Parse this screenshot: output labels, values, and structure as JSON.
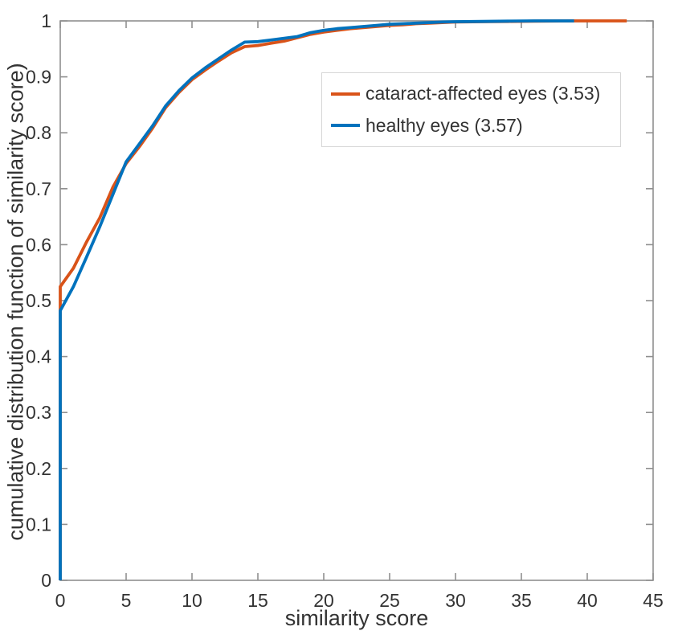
{
  "chart_data": {
    "type": "line",
    "title": "",
    "xlabel": "similarity score",
    "ylabel": "cumulative distribution function of similarity score)",
    "xlim": [
      0,
      45
    ],
    "ylim": [
      0,
      1
    ],
    "xticks": [
      0,
      5,
      10,
      15,
      20,
      25,
      30,
      35,
      40,
      45
    ],
    "yticks": [
      0,
      0.1,
      0.2,
      0.3,
      0.4,
      0.5,
      0.6,
      0.7,
      0.8,
      0.9,
      1
    ],
    "grid": false,
    "box": true,
    "tick_direction": "in",
    "legend_position": "upper-right-inside",
    "axis_color": "#8f8f8f",
    "tick_label_color": "#333333",
    "series": [
      {
        "name": "cataract-affected-eyes",
        "label": "cataract-affected eyes (3.53)",
        "legend_value": 3.53,
        "color": "#D95319",
        "points": [
          [
            0,
            0
          ],
          [
            0,
            0.525
          ],
          [
            1,
            0.558
          ],
          [
            2,
            0.605
          ],
          [
            3,
            0.648
          ],
          [
            4,
            0.703
          ],
          [
            5,
            0.745
          ],
          [
            6,
            0.775
          ],
          [
            7,
            0.808
          ],
          [
            8,
            0.845
          ],
          [
            9,
            0.872
          ],
          [
            10,
            0.895
          ],
          [
            11,
            0.912
          ],
          [
            12,
            0.928
          ],
          [
            13,
            0.943
          ],
          [
            14,
            0.954
          ],
          [
            15,
            0.956
          ],
          [
            16,
            0.96
          ],
          [
            17,
            0.964
          ],
          [
            18,
            0.97
          ],
          [
            19,
            0.976
          ],
          [
            20,
            0.98
          ],
          [
            21,
            0.983
          ],
          [
            22,
            0.986
          ],
          [
            23,
            0.988
          ],
          [
            24,
            0.99
          ],
          [
            25,
            0.992
          ],
          [
            26,
            0.993
          ],
          [
            27,
            0.995
          ],
          [
            28,
            0.996
          ],
          [
            29,
            0.997
          ],
          [
            30,
            0.998
          ],
          [
            32,
            0.9985
          ],
          [
            34,
            0.999
          ],
          [
            36,
            0.9995
          ],
          [
            39,
            1.0
          ],
          [
            43,
            1.0
          ]
        ]
      },
      {
        "name": "healthy-eyes",
        "label": "healthy eyes (3.57)",
        "legend_value": 3.57,
        "color": "#0072BD",
        "points": [
          [
            0,
            0
          ],
          [
            0,
            0.482
          ],
          [
            1,
            0.525
          ],
          [
            2,
            0.578
          ],
          [
            3,
            0.632
          ],
          [
            4,
            0.69
          ],
          [
            5,
            0.748
          ],
          [
            6,
            0.78
          ],
          [
            7,
            0.812
          ],
          [
            8,
            0.848
          ],
          [
            9,
            0.875
          ],
          [
            10,
            0.898
          ],
          [
            11,
            0.916
          ],
          [
            12,
            0.932
          ],
          [
            13,
            0.948
          ],
          [
            14,
            0.962
          ],
          [
            15,
            0.963
          ],
          [
            16,
            0.966
          ],
          [
            17,
            0.969
          ],
          [
            18,
            0.972
          ],
          [
            19,
            0.979
          ],
          [
            20,
            0.983
          ],
          [
            21,
            0.986
          ],
          [
            22,
            0.988
          ],
          [
            23,
            0.99
          ],
          [
            24,
            0.992
          ],
          [
            25,
            0.994
          ],
          [
            26,
            0.995
          ],
          [
            27,
            0.996
          ],
          [
            28,
            0.997
          ],
          [
            29,
            0.998
          ],
          [
            30,
            0.9985
          ],
          [
            32,
            0.999
          ],
          [
            34,
            0.9995
          ],
          [
            36,
            1.0
          ],
          [
            39,
            1.0
          ]
        ]
      }
    ]
  }
}
